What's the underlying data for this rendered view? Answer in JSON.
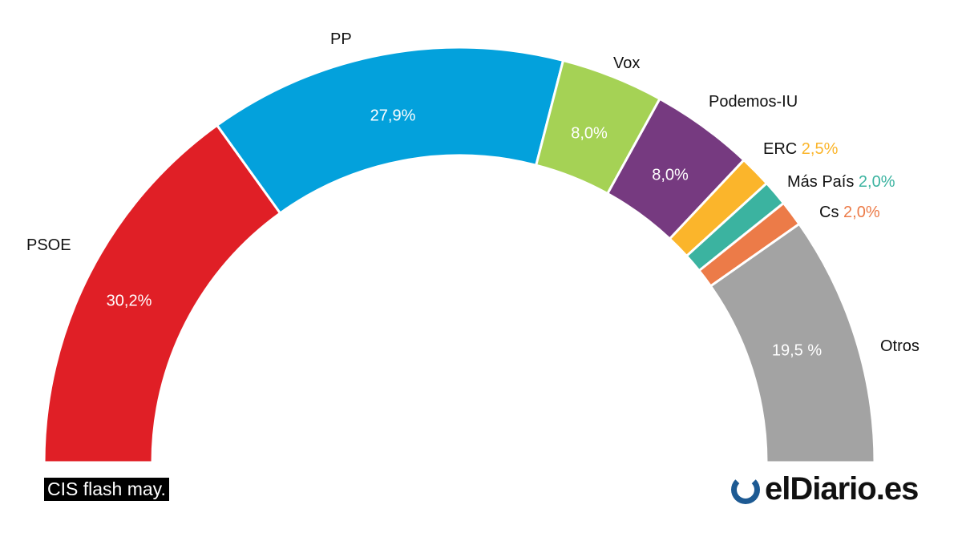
{
  "chart_data": {
    "type": "pie",
    "shape": "semicircle-donut",
    "segments": [
      {
        "name": "PSOE",
        "value": 30.2,
        "label": "30,2%",
        "color": "#e01f26"
      },
      {
        "name": "PP",
        "value": 27.9,
        "label": "27,9%",
        "color": "#03a1dc"
      },
      {
        "name": "Vox",
        "value": 8.0,
        "label": "8,0%",
        "color": "#a5d255"
      },
      {
        "name": "Podemos-IU",
        "value": 8.0,
        "label": "8,0%",
        "color": "#763a80"
      },
      {
        "name": "ERC",
        "value": 2.5,
        "label": "2,5%",
        "color": "#fbb52b"
      },
      {
        "name": "Más País",
        "value": 2.0,
        "label": "2,0%",
        "color": "#3bb3a0"
      },
      {
        "name": "Cs",
        "value": 2.0,
        "label": "2,0%",
        "color": "#ec7b48"
      },
      {
        "name": "Otros",
        "value": 19.5,
        "label": "19,5 %",
        "color": "#a3a3a3"
      }
    ]
  },
  "source": "CIS flash may.",
  "logo": "elDiario.es"
}
